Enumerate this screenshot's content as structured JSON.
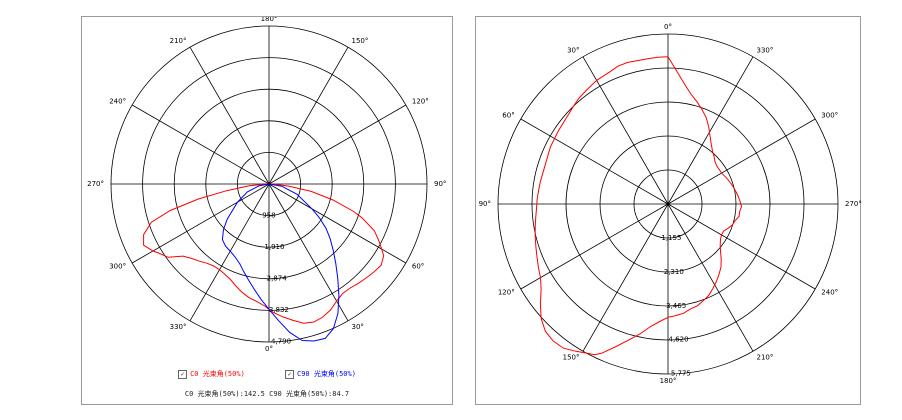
{
  "colors": {
    "c0": "#ff0000",
    "c90": "#0000ff",
    "grid": "#000000"
  },
  "legend": {
    "c0_label": "C0 光束角(50%)",
    "c90_label": "C90 光束角(50%)",
    "check_mark": "✓",
    "summary": "C0 光束角(50%):142.5  C90 光束角(50%):84.7"
  },
  "chart_data": [
    {
      "type": "polar",
      "angle_labels": [
        "180°",
        "150°",
        "120°",
        "90°",
        "60°",
        "30°",
        "0°",
        "330°",
        "300°",
        "270°",
        "240°",
        "210°"
      ],
      "ring_labels": [
        "958",
        "1,916",
        "2,874",
        "3,832",
        "4,790"
      ],
      "rmax": 4790,
      "series": [
        {
          "name": "C0 光束角(50%)",
          "color": "#ff0000",
          "theta": [
            -90,
            -85,
            -81,
            -78,
            -75,
            -72,
            -68,
            -64,
            -60,
            -58,
            -54,
            -50,
            -46,
            -42,
            -38,
            -34,
            -30,
            -26,
            -22,
            -18,
            -14,
            -10,
            -6,
            -2,
            0,
            2,
            6,
            10,
            14,
            18,
            22,
            26,
            30,
            34,
            38,
            42,
            46,
            50,
            54,
            58,
            62,
            66,
            70,
            72,
            76,
            80,
            84,
            88,
            90
          ],
          "r": [
            0,
            600,
            1300,
            2200,
            3100,
            3750,
            4100,
            4230,
            4060,
            3950,
            3780,
            3400,
            3250,
            3150,
            3050,
            3000,
            3000,
            3050,
            3120,
            3250,
            3380,
            3500,
            3580,
            3700,
            3800,
            3900,
            4050,
            4200,
            4350,
            4400,
            4350,
            4250,
            4100,
            4000,
            4000,
            4050,
            4100,
            4150,
            4200,
            4100,
            3800,
            3500,
            3000,
            2700,
            2000,
            1300,
            600,
            150,
            0
          ]
        },
        {
          "name": "C90 光束角(50%)",
          "color": "#0000ff",
          "theta": [
            -90,
            -80,
            -70,
            -60,
            -50,
            -45,
            -40,
            -35,
            -30,
            -25,
            -20,
            -16,
            -12,
            -8,
            -4,
            0,
            4,
            8,
            12,
            16,
            20,
            24,
            28,
            32,
            36,
            40,
            44,
            48,
            52,
            56,
            60,
            70,
            80,
            90
          ],
          "r": [
            0,
            300,
            700,
            1100,
            1650,
            1950,
            2200,
            2300,
            2350,
            2440,
            2580,
            2770,
            2980,
            3220,
            3500,
            3800,
            4150,
            4550,
            4850,
            4950,
            4980,
            4800,
            4450,
            4000,
            3550,
            3150,
            2800,
            2500,
            2200,
            1850,
            1500,
            900,
            400,
            0
          ]
        }
      ]
    },
    {
      "type": "polar",
      "angle_labels": [
        "0°",
        "330°",
        "300°",
        "270°",
        "240°",
        "210°",
        "180°",
        "150°",
        "120°",
        "90°",
        "60°",
        "30°"
      ],
      "ring_labels": [
        "1,155",
        "2,310",
        "3,465",
        "4,620",
        "5,775"
      ],
      "rmax": 5775,
      "series": [
        {
          "name": "",
          "color": "#ff0000",
          "theta": [
            -180,
            -176,
            -172,
            -168,
            -164,
            -160,
            -156,
            -150,
            -144,
            -140,
            -136,
            -132,
            -128,
            -124,
            -120,
            -116,
            -112,
            -108,
            -104,
            -100,
            -96,
            -92,
            -88,
            -84,
            -80,
            -76,
            -72,
            -68,
            -64,
            -60,
            -56,
            -52,
            -48,
            -44,
            -40,
            -36,
            -32,
            -28,
            -26,
            -24,
            -20,
            -16,
            -12,
            -8,
            -4,
            0,
            4,
            8,
            12,
            16,
            20,
            24,
            28,
            32,
            36,
            40,
            44,
            48,
            52,
            56,
            60,
            64,
            68,
            72,
            76,
            80,
            84,
            88,
            92,
            96,
            100,
            104,
            108,
            112,
            116,
            120,
            124,
            128,
            132,
            136,
            140,
            144,
            148,
            152,
            156,
            160,
            164,
            168,
            172,
            176,
            180
          ],
          "r": [
            5000,
            5000,
            4980,
            4980,
            5000,
            4980,
            4900,
            4850,
            4750,
            4700,
            4620,
            4550,
            4500,
            4480,
            4450,
            4440,
            4400,
            4380,
            4380,
            4400,
            4420,
            4450,
            4470,
            4520,
            4580,
            4650,
            4720,
            4800,
            4900,
            5000,
            5200,
            5500,
            5800,
            6000,
            6070,
            6050,
            5900,
            5750,
            5700,
            5550,
            5150,
            4800,
            4500,
            4200,
            4000,
            3850,
            3800,
            3750,
            3650,
            3600,
            3500,
            3400,
            3250,
            3100,
            2950,
            2800,
            2600,
            2400,
            2250,
            2150,
            2100,
            2100,
            2200,
            2300,
            2350,
            2450,
            2450,
            2500,
            2450,
            2400,
            2350,
            2300,
            2250,
            2200,
            2150,
            2100,
            2100,
            2100,
            2150,
            2250,
            2350,
            2500,
            2700,
            2950,
            3200,
            3400,
            3600,
            3800,
            4100,
            4500,
            5000
          ]
        }
      ]
    }
  ]
}
